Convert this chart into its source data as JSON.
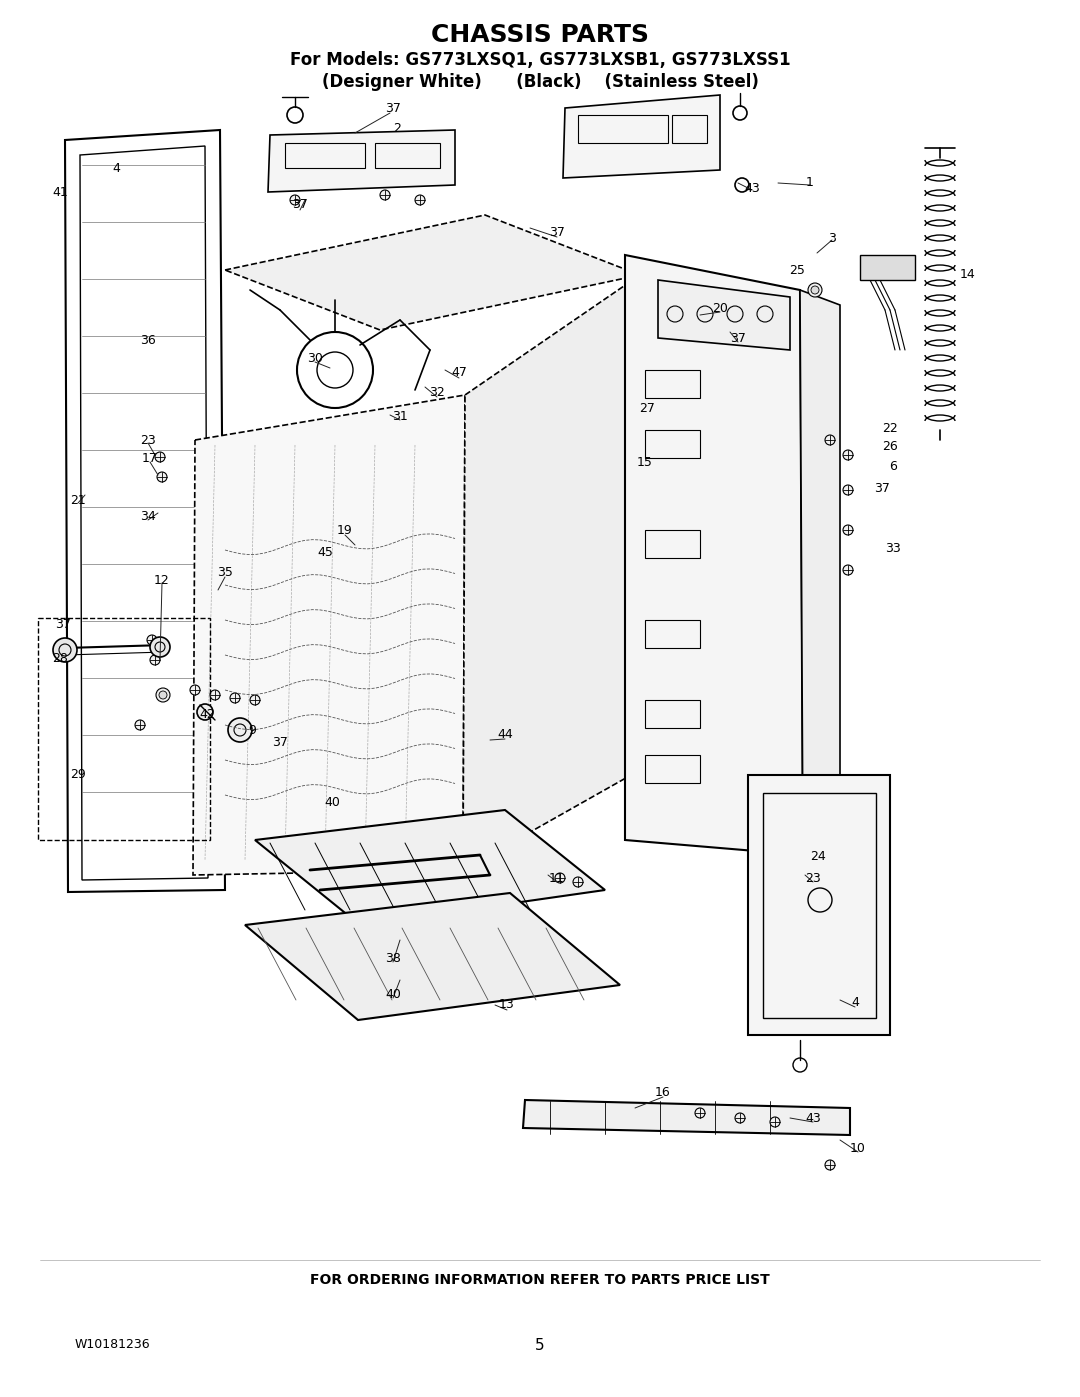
{
  "title": "CHASSIS PARTS",
  "subtitle1": "For Models: GS773LXSQ1, GS773LXSB1, GS773LXSS1",
  "subtitle2": "(Designer White)      (Black)    (Stainless Steel)",
  "footer_left": "W10181236",
  "footer_center": "5",
  "footer_bottom": "FOR ORDERING INFORMATION REFER TO PARTS PRICE LIST",
  "bg_color": "#ffffff",
  "line_color": "#000000",
  "fig_width": 10.8,
  "fig_height": 13.97,
  "title_fontsize": 18,
  "subtitle_fontsize": 12,
  "label_fontsize": 9,
  "footer_fontsize": 9
}
